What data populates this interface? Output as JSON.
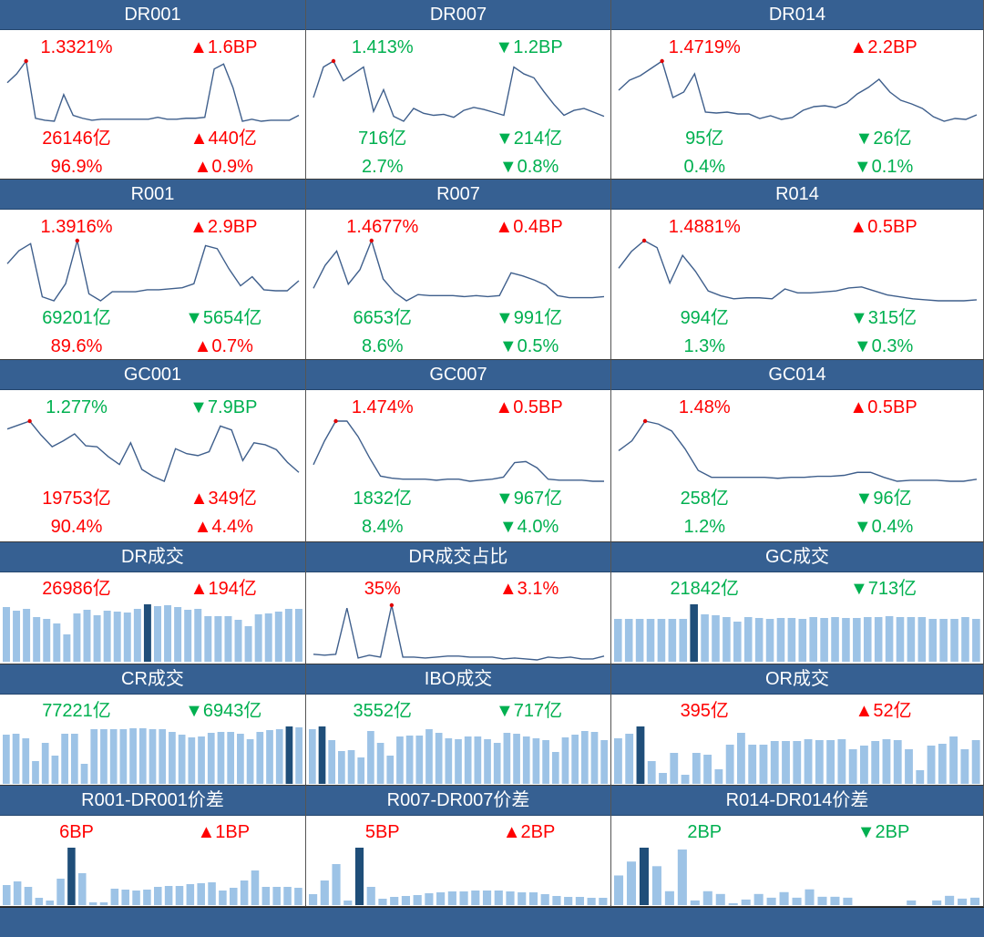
{
  "colors": {
    "header": "#366092",
    "up": "#ff0000",
    "down": "#00b050",
    "line": "#3f5f8c",
    "bar": "#9dc3e6",
    "bar_highlight": "#1f4e79",
    "marker": "#e00000"
  },
  "rate_panels": [
    {
      "title": "DR001",
      "rate": "1.3321%",
      "rate_color": "red",
      "rate_chg": "▲1.6BP",
      "rate_chg_color": "red",
      "volume": "26146亿",
      "volume_color": "red",
      "volume_chg": "▲440亿",
      "volume_chg_color": "red",
      "share": "96.9%",
      "share_color": "red",
      "share_chg": "▲0.9%",
      "share_chg_color": "red",
      "marker_index": 2,
      "series": [
        44,
        53,
        66,
        8,
        6,
        5,
        32,
        11,
        8,
        6,
        7,
        7,
        7,
        7,
        7,
        7,
        9,
        7,
        7,
        8,
        8,
        9,
        58,
        63,
        39,
        5,
        7,
        5,
        6,
        6,
        6,
        11
      ]
    },
    {
      "title": "DR007",
      "rate": "1.413%",
      "rate_color": "green",
      "rate_chg": "▼1.2BP",
      "rate_chg_color": "green",
      "volume": "716亿",
      "volume_color": "green",
      "volume_chg": "▼214亿",
      "volume_chg_color": "green",
      "share": "2.7%",
      "share_color": "green",
      "share_chg": "▼0.8%",
      "share_chg_color": "green",
      "marker_index": 2,
      "series": [
        29,
        60,
        66,
        46,
        53,
        60,
        15,
        37,
        10,
        5,
        18,
        13,
        11,
        12,
        9,
        16,
        19,
        17,
        14,
        11,
        60,
        53,
        49,
        35,
        22,
        11,
        16,
        18,
        14,
        10
      ]
    },
    {
      "title": "DR014",
      "rate": "1.4719%",
      "rate_color": "red",
      "rate_chg": "▲2.2BP",
      "rate_chg_color": "red",
      "volume": "95亿",
      "volume_color": "green",
      "volume_chg": "▼26亿",
      "volume_chg_color": "green",
      "share": "0.4%",
      "share_color": "green",
      "share_chg": "▼0.1%",
      "share_chg_color": "green",
      "marker_index": 4,
      "series": [
        39,
        50,
        55,
        63,
        71,
        31,
        37,
        57,
        15,
        14,
        15,
        13,
        13,
        8,
        11,
        7,
        9,
        17,
        21,
        22,
        20,
        25,
        35,
        42,
        51,
        37,
        28,
        24,
        19,
        10,
        5,
        8,
        7,
        12
      ]
    },
    {
      "title": "R001",
      "rate": "1.3916%",
      "rate_color": "red",
      "rate_chg": "▲2.9BP",
      "rate_chg_color": "red",
      "volume": "69201亿",
      "volume_color": "green",
      "volume_chg": "▼5654亿",
      "volume_chg_color": "green",
      "share": "89.6%",
      "share_color": "red",
      "share_chg": "▲0.7%",
      "share_chg_color": "red",
      "marker_index": 6,
      "series": [
        44,
        57,
        64,
        11,
        7,
        24,
        67,
        14,
        7,
        16,
        16,
        16,
        18,
        18,
        19,
        20,
        24,
        62,
        59,
        39,
        22,
        31,
        18,
        17,
        17,
        27
      ]
    },
    {
      "title": "R007",
      "rate": "1.4677%",
      "rate_color": "red",
      "rate_chg": "▲0.4BP",
      "rate_chg_color": "red",
      "volume": "6653亿",
      "volume_color": "green",
      "volume_chg": "▼991亿",
      "volume_chg_color": "green",
      "share": "8.6%",
      "share_color": "green",
      "share_chg": "▼0.5%",
      "share_chg_color": "green",
      "marker_index": 5,
      "series": [
        21,
        43,
        57,
        25,
        39,
        67,
        30,
        17,
        9,
        15,
        14,
        14,
        14,
        13,
        14,
        13,
        14,
        36,
        33,
        29,
        24,
        14,
        12,
        12,
        12,
        13
      ]
    },
    {
      "title": "R014",
      "rate": "1.4881%",
      "rate_color": "red",
      "rate_chg": "▲0.5BP",
      "rate_chg_color": "red",
      "volume": "994亿",
      "volume_color": "green",
      "volume_chg": "▼315亿",
      "volume_chg_color": "green",
      "share": "1.3%",
      "share_color": "green",
      "share_chg": "▼0.3%",
      "share_chg_color": "green",
      "marker_index": 2,
      "series": [
        39,
        56,
        67,
        60,
        24,
        52,
        36,
        16,
        11,
        8,
        9,
        9,
        8,
        18,
        14,
        14,
        15,
        16,
        19,
        20,
        16,
        12,
        10,
        8,
        7,
        6,
        6,
        6,
        7
      ]
    },
    {
      "title": "GC001",
      "rate": "1.277%",
      "rate_color": "green",
      "rate_chg": "▼7.9BP",
      "rate_chg_color": "green",
      "volume": "19753亿",
      "volume_color": "red",
      "volume_chg": "▲349亿",
      "volume_chg_color": "red",
      "share": "90.4%",
      "share_color": "red",
      "share_chg": "▲4.4%",
      "share_chg_color": "red",
      "marker_index": 2,
      "series": [
        58,
        62,
        66,
        52,
        40,
        46,
        53,
        41,
        40,
        30,
        22,
        44,
        17,
        10,
        5,
        38,
        33,
        31,
        35,
        61,
        57,
        26,
        44,
        42,
        37,
        24,
        14
      ]
    },
    {
      "title": "GC007",
      "rate": "1.474%",
      "rate_color": "red",
      "rate_chg": "▲0.5BP",
      "rate_chg_color": "red",
      "volume": "1832亿",
      "volume_color": "green",
      "volume_chg": "▼967亿",
      "volume_chg_color": "green",
      "share": "8.4%",
      "share_color": "green",
      "share_chg": "▼4.0%",
      "share_chg_color": "green",
      "marker_index": 2,
      "series": [
        23,
        46,
        65,
        65,
        50,
        30,
        12,
        10,
        9,
        9,
        9,
        8,
        9,
        9,
        7,
        8,
        9,
        11,
        25,
        26,
        20,
        9,
        8,
        8,
        8,
        7,
        7
      ]
    },
    {
      "title": "GC014",
      "rate": "1.48%",
      "rate_color": "red",
      "rate_chg": "▲0.5BP",
      "rate_chg_color": "red",
      "volume": "258亿",
      "volume_color": "green",
      "volume_chg": "▼96亿",
      "volume_chg_color": "green",
      "share": "1.2%",
      "share_color": "green",
      "share_chg": "▼0.4%",
      "share_chg_color": "green",
      "marker_index": 2,
      "series": [
        36,
        46,
        66,
        63,
        56,
        38,
        16,
        9,
        9,
        9,
        9,
        9,
        8,
        9,
        9,
        10,
        10,
        11,
        14,
        14,
        9,
        5,
        6,
        6,
        6,
        5,
        5,
        7
      ]
    }
  ],
  "volume_panels": [
    {
      "title": "DR成交",
      "value": "26986亿",
      "value_color": "red",
      "chg": "▲194亿",
      "chg_color": "red",
      "chart": "bar",
      "highlight_index": 14,
      "series": [
        60,
        56,
        58,
        49,
        47,
        42,
        30,
        53,
        57,
        51,
        56,
        55,
        54,
        58,
        63,
        61,
        62,
        60,
        57,
        58,
        50,
        50,
        50,
        46,
        39,
        52,
        53,
        55,
        58,
        58
      ]
    },
    {
      "title": "DR成交占比",
      "value": "35%",
      "value_color": "red",
      "chg": "▲3.1%",
      "chg_color": "red",
      "chart": "line",
      "marker_index": 7,
      "series": [
        8,
        7,
        8,
        57,
        4,
        7,
        5,
        60,
        5,
        5,
        4,
        5,
        6,
        6,
        5,
        5,
        5,
        3,
        4,
        3,
        2,
        5,
        4,
        5,
        3,
        3,
        6
      ]
    },
    {
      "title": "GC成交",
      "value": "21842亿",
      "value_color": "green",
      "chg": "▼713亿",
      "chg_color": "green",
      "chart": "bar",
      "highlight_index": 7,
      "series": [
        47,
        47,
        47,
        47,
        47,
        47,
        47,
        63,
        52,
        51,
        49,
        44,
        49,
        48,
        47,
        48,
        48,
        47,
        49,
        48,
        49,
        48,
        48,
        49,
        49,
        50,
        49,
        49,
        49,
        47,
        47,
        47,
        49,
        47
      ]
    },
    {
      "title": "CR成交",
      "value": "77221亿",
      "value_color": "green",
      "chg": "▼6943亿",
      "chg_color": "green",
      "chart": "bar",
      "highlight_index": 29,
      "series": [
        54,
        55,
        50,
        25,
        45,
        31,
        55,
        55,
        22,
        60,
        60,
        60,
        60,
        61,
        61,
        60,
        60,
        57,
        54,
        51,
        52,
        56,
        57,
        57,
        55,
        49,
        57,
        59,
        60,
        63,
        62
      ]
    },
    {
      "title": "IBO成交",
      "value": "3552亿",
      "value_color": "green",
      "chg": "▼717亿",
      "chg_color": "green",
      "chart": "bar",
      "highlight_index": 1,
      "series": [
        60,
        63,
        48,
        36,
        37,
        29,
        58,
        45,
        31,
        52,
        53,
        53,
        60,
        56,
        50,
        49,
        52,
        52,
        49,
        45,
        56,
        55,
        52,
        50,
        48,
        35,
        51,
        54,
        58,
        57,
        48
      ]
    },
    {
      "title": "OR成交",
      "value": "395亿",
      "value_color": "red",
      "chg": "▲52亿",
      "chg_color": "red",
      "chart": "bar",
      "highlight_index": 2,
      "series": [
        50,
        55,
        63,
        25,
        12,
        34,
        10,
        34,
        32,
        16,
        43,
        56,
        43,
        43,
        47,
        47,
        47,
        49,
        48,
        48,
        49,
        38,
        42,
        47,
        49,
        48,
        38,
        15,
        42,
        44,
        52,
        38,
        48
      ]
    },
    {
      "title": "R001-DR001价差",
      "value": "6BP",
      "value_color": "red",
      "chg": "▲1BP",
      "chg_color": "red",
      "chart": "bar",
      "highlight_index": 6,
      "series": [
        22,
        26,
        20,
        8,
        5,
        29,
        63,
        35,
        3,
        3,
        18,
        17,
        16,
        17,
        20,
        21,
        21,
        23,
        24,
        25,
        16,
        19,
        27,
        38,
        20,
        20,
        20,
        19
      ]
    },
    {
      "title": "R007-DR007价差",
      "value": "5BP",
      "value_color": "red",
      "chg": "▲2BP",
      "chg_color": "red",
      "chart": "bar",
      "highlight_index": 4,
      "series": [
        12,
        27,
        45,
        5,
        63,
        20,
        7,
        9,
        10,
        11,
        13,
        14,
        15,
        15,
        16,
        16,
        16,
        15,
        14,
        14,
        12,
        10,
        9,
        9,
        8,
        8
      ]
    },
    {
      "title": "R014-DR014价差",
      "value": "2BP",
      "value_color": "green",
      "chg": "▼2BP",
      "chg_color": "green",
      "chart": "bar",
      "highlight_index": 2,
      "series": [
        32,
        47,
        62,
        42,
        15,
        60,
        5,
        15,
        12,
        2,
        6,
        12,
        8,
        14,
        8,
        17,
        9,
        9,
        8,
        0,
        0,
        0,
        0,
        5,
        0,
        5,
        10,
        7,
        8
      ]
    }
  ]
}
